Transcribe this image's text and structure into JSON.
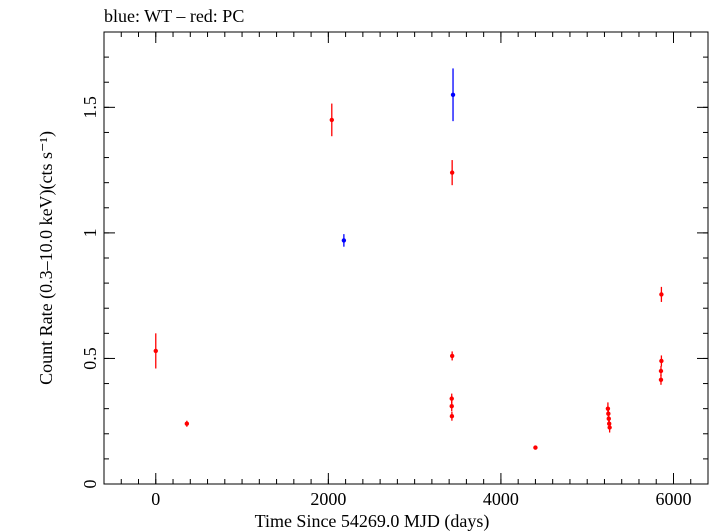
{
  "chart_data": {
    "type": "scatter",
    "title": "blue: WT – red: PC",
    "xlabel": "Time Since 54269.0 MJD (days)",
    "ylabel": "Count Rate (0.3–10.0 keV)(cts s⁻¹)",
    "xlim": [
      -600,
      6400
    ],
    "ylim": [
      0,
      1.8
    ],
    "x_ticks": [
      {
        "value": 0,
        "label": "0"
      },
      {
        "value": 2000,
        "label": "2000"
      },
      {
        "value": 4000,
        "label": "4000"
      },
      {
        "value": 6000,
        "label": "6000"
      }
    ],
    "y_ticks": [
      {
        "value": 0,
        "label": "0"
      },
      {
        "value": 0.5,
        "label": "0.5"
      },
      {
        "value": 1,
        "label": "1"
      },
      {
        "value": 1.5,
        "label": "1.5"
      }
    ],
    "x_minor_step": 200,
    "y_minor_step": 0.1,
    "series": [
      {
        "color": "#0000ff",
        "points": [
          {
            "x": 2180,
            "y": 0.97,
            "err": 0.025
          },
          {
            "x": 3445,
            "y": 1.55,
            "err": 0.105
          }
        ]
      },
      {
        "color": "#ff0000",
        "points": [
          {
            "x": 0,
            "y": 0.53,
            "err": 0.07
          },
          {
            "x": 360,
            "y": 0.24,
            "err": 0.012
          },
          {
            "x": 2040,
            "y": 1.45,
            "err": 0.065
          },
          {
            "x": 3435,
            "y": 1.24,
            "err": 0.05
          },
          {
            "x": 3435,
            "y": 0.51,
            "err": 0.018
          },
          {
            "x": 3430,
            "y": 0.34,
            "err": 0.02
          },
          {
            "x": 3430,
            "y": 0.31,
            "err": 0.02
          },
          {
            "x": 3432,
            "y": 0.27,
            "err": 0.018
          },
          {
            "x": 4400,
            "y": 0.145,
            "err": 0.008
          },
          {
            "x": 5240,
            "y": 0.3,
            "err": 0.025
          },
          {
            "x": 5245,
            "y": 0.28,
            "err": 0.022
          },
          {
            "x": 5250,
            "y": 0.26,
            "err": 0.022
          },
          {
            "x": 5255,
            "y": 0.24,
            "err": 0.02
          },
          {
            "x": 5260,
            "y": 0.225,
            "err": 0.02
          },
          {
            "x": 5860,
            "y": 0.755,
            "err": 0.03
          },
          {
            "x": 5860,
            "y": 0.49,
            "err": 0.022
          },
          {
            "x": 5855,
            "y": 0.45,
            "err": 0.02
          },
          {
            "x": 5855,
            "y": 0.415,
            "err": 0.02
          }
        ]
      }
    ]
  }
}
